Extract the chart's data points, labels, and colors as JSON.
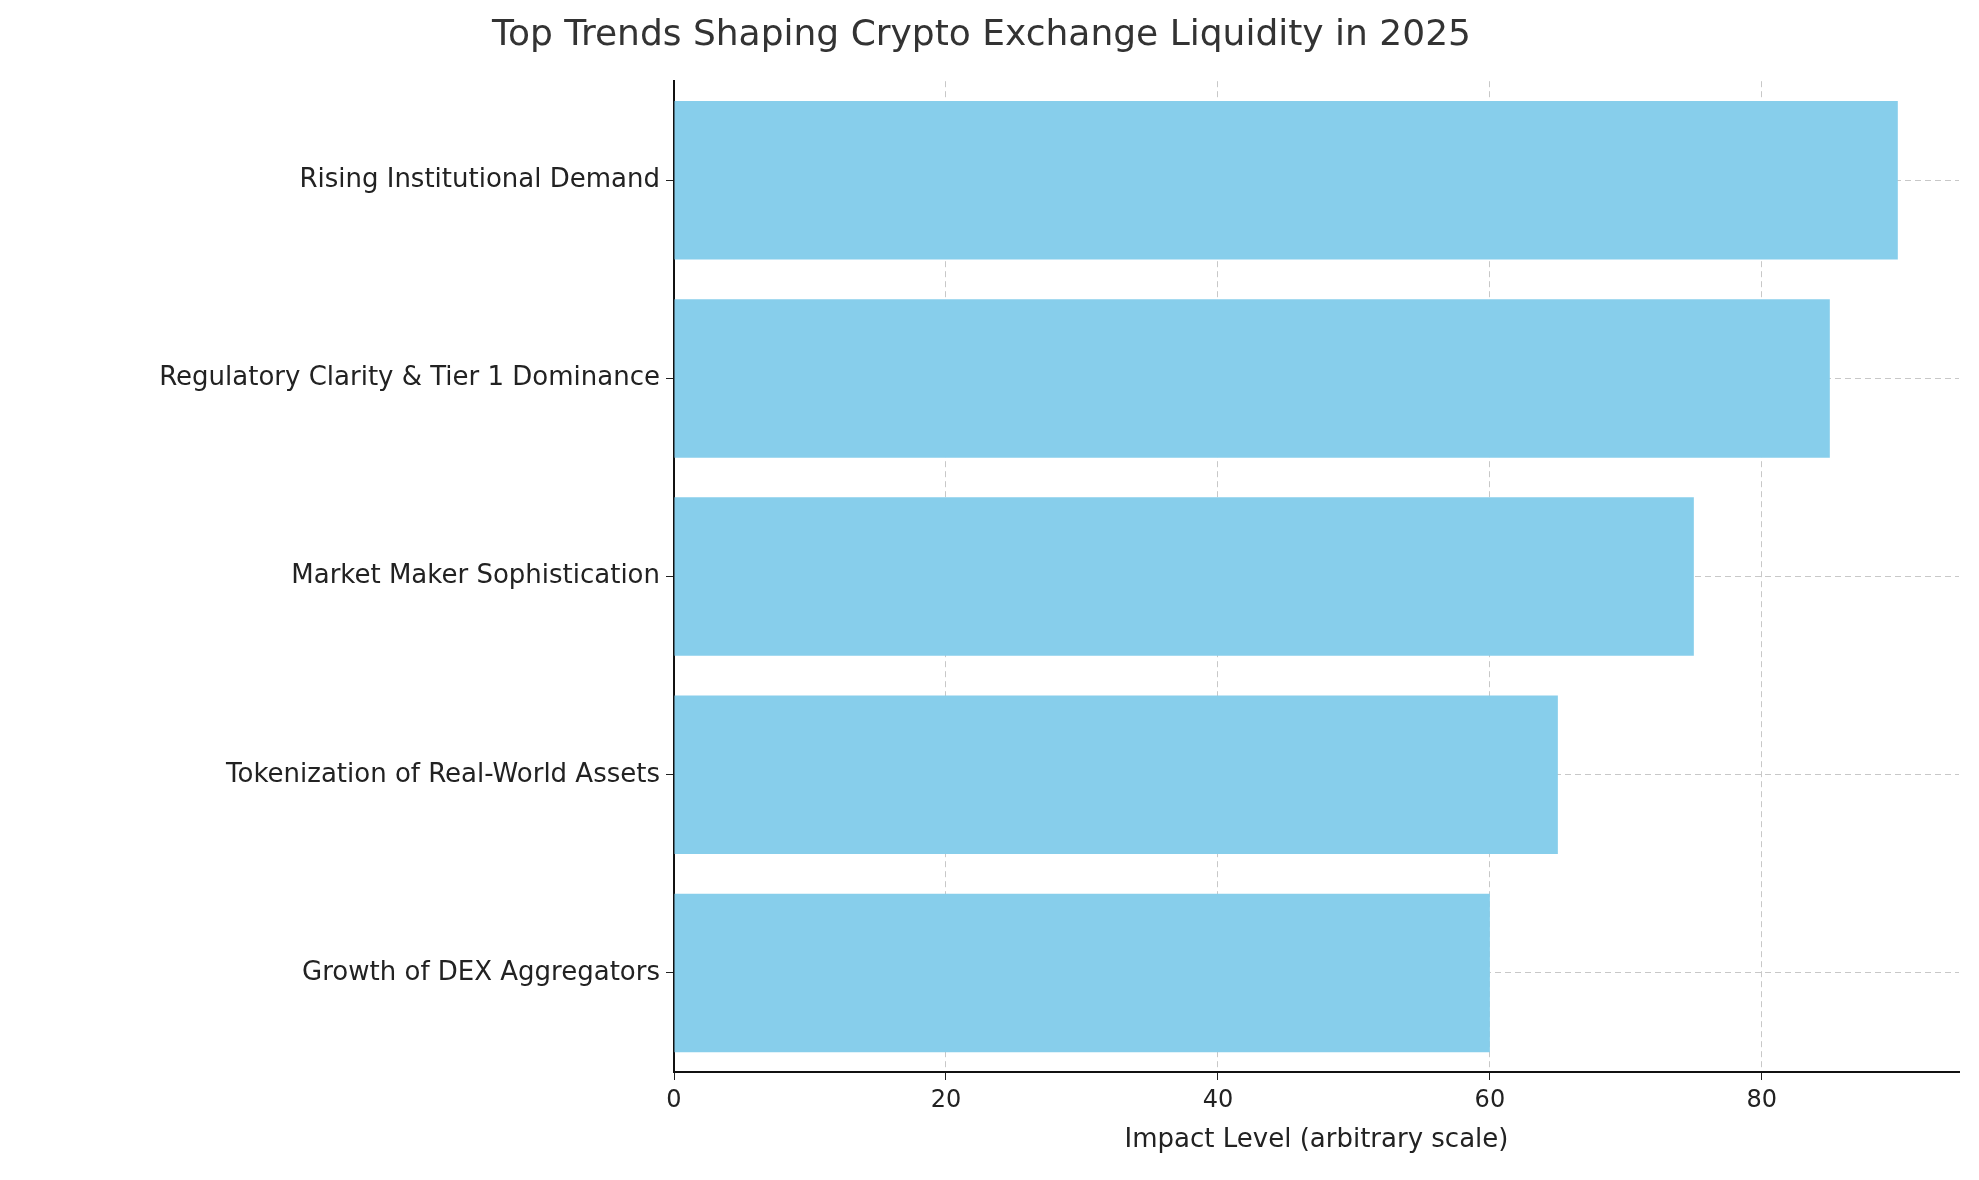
{
  "chart_data": {
    "type": "bar",
    "orientation": "horizontal",
    "title": "Top Trends Shaping Crypto Exchange Liquidity in 2025",
    "xlabel": "Impact Level (arbitrary scale)",
    "categories": [
      "Rising Institutional Demand",
      "Regulatory Clarity & Tier 1 Dominance",
      "Market Maker Sophistication",
      "Tokenization of Real-World Assets",
      "Growth of DEX Aggregators"
    ],
    "values": [
      90,
      85,
      75,
      65,
      60
    ],
    "color": "#87ceeb",
    "xlim": [
      0,
      94.5
    ],
    "xticks": [
      0,
      20,
      40,
      60,
      80
    ],
    "grid": true,
    "legend": false
  }
}
